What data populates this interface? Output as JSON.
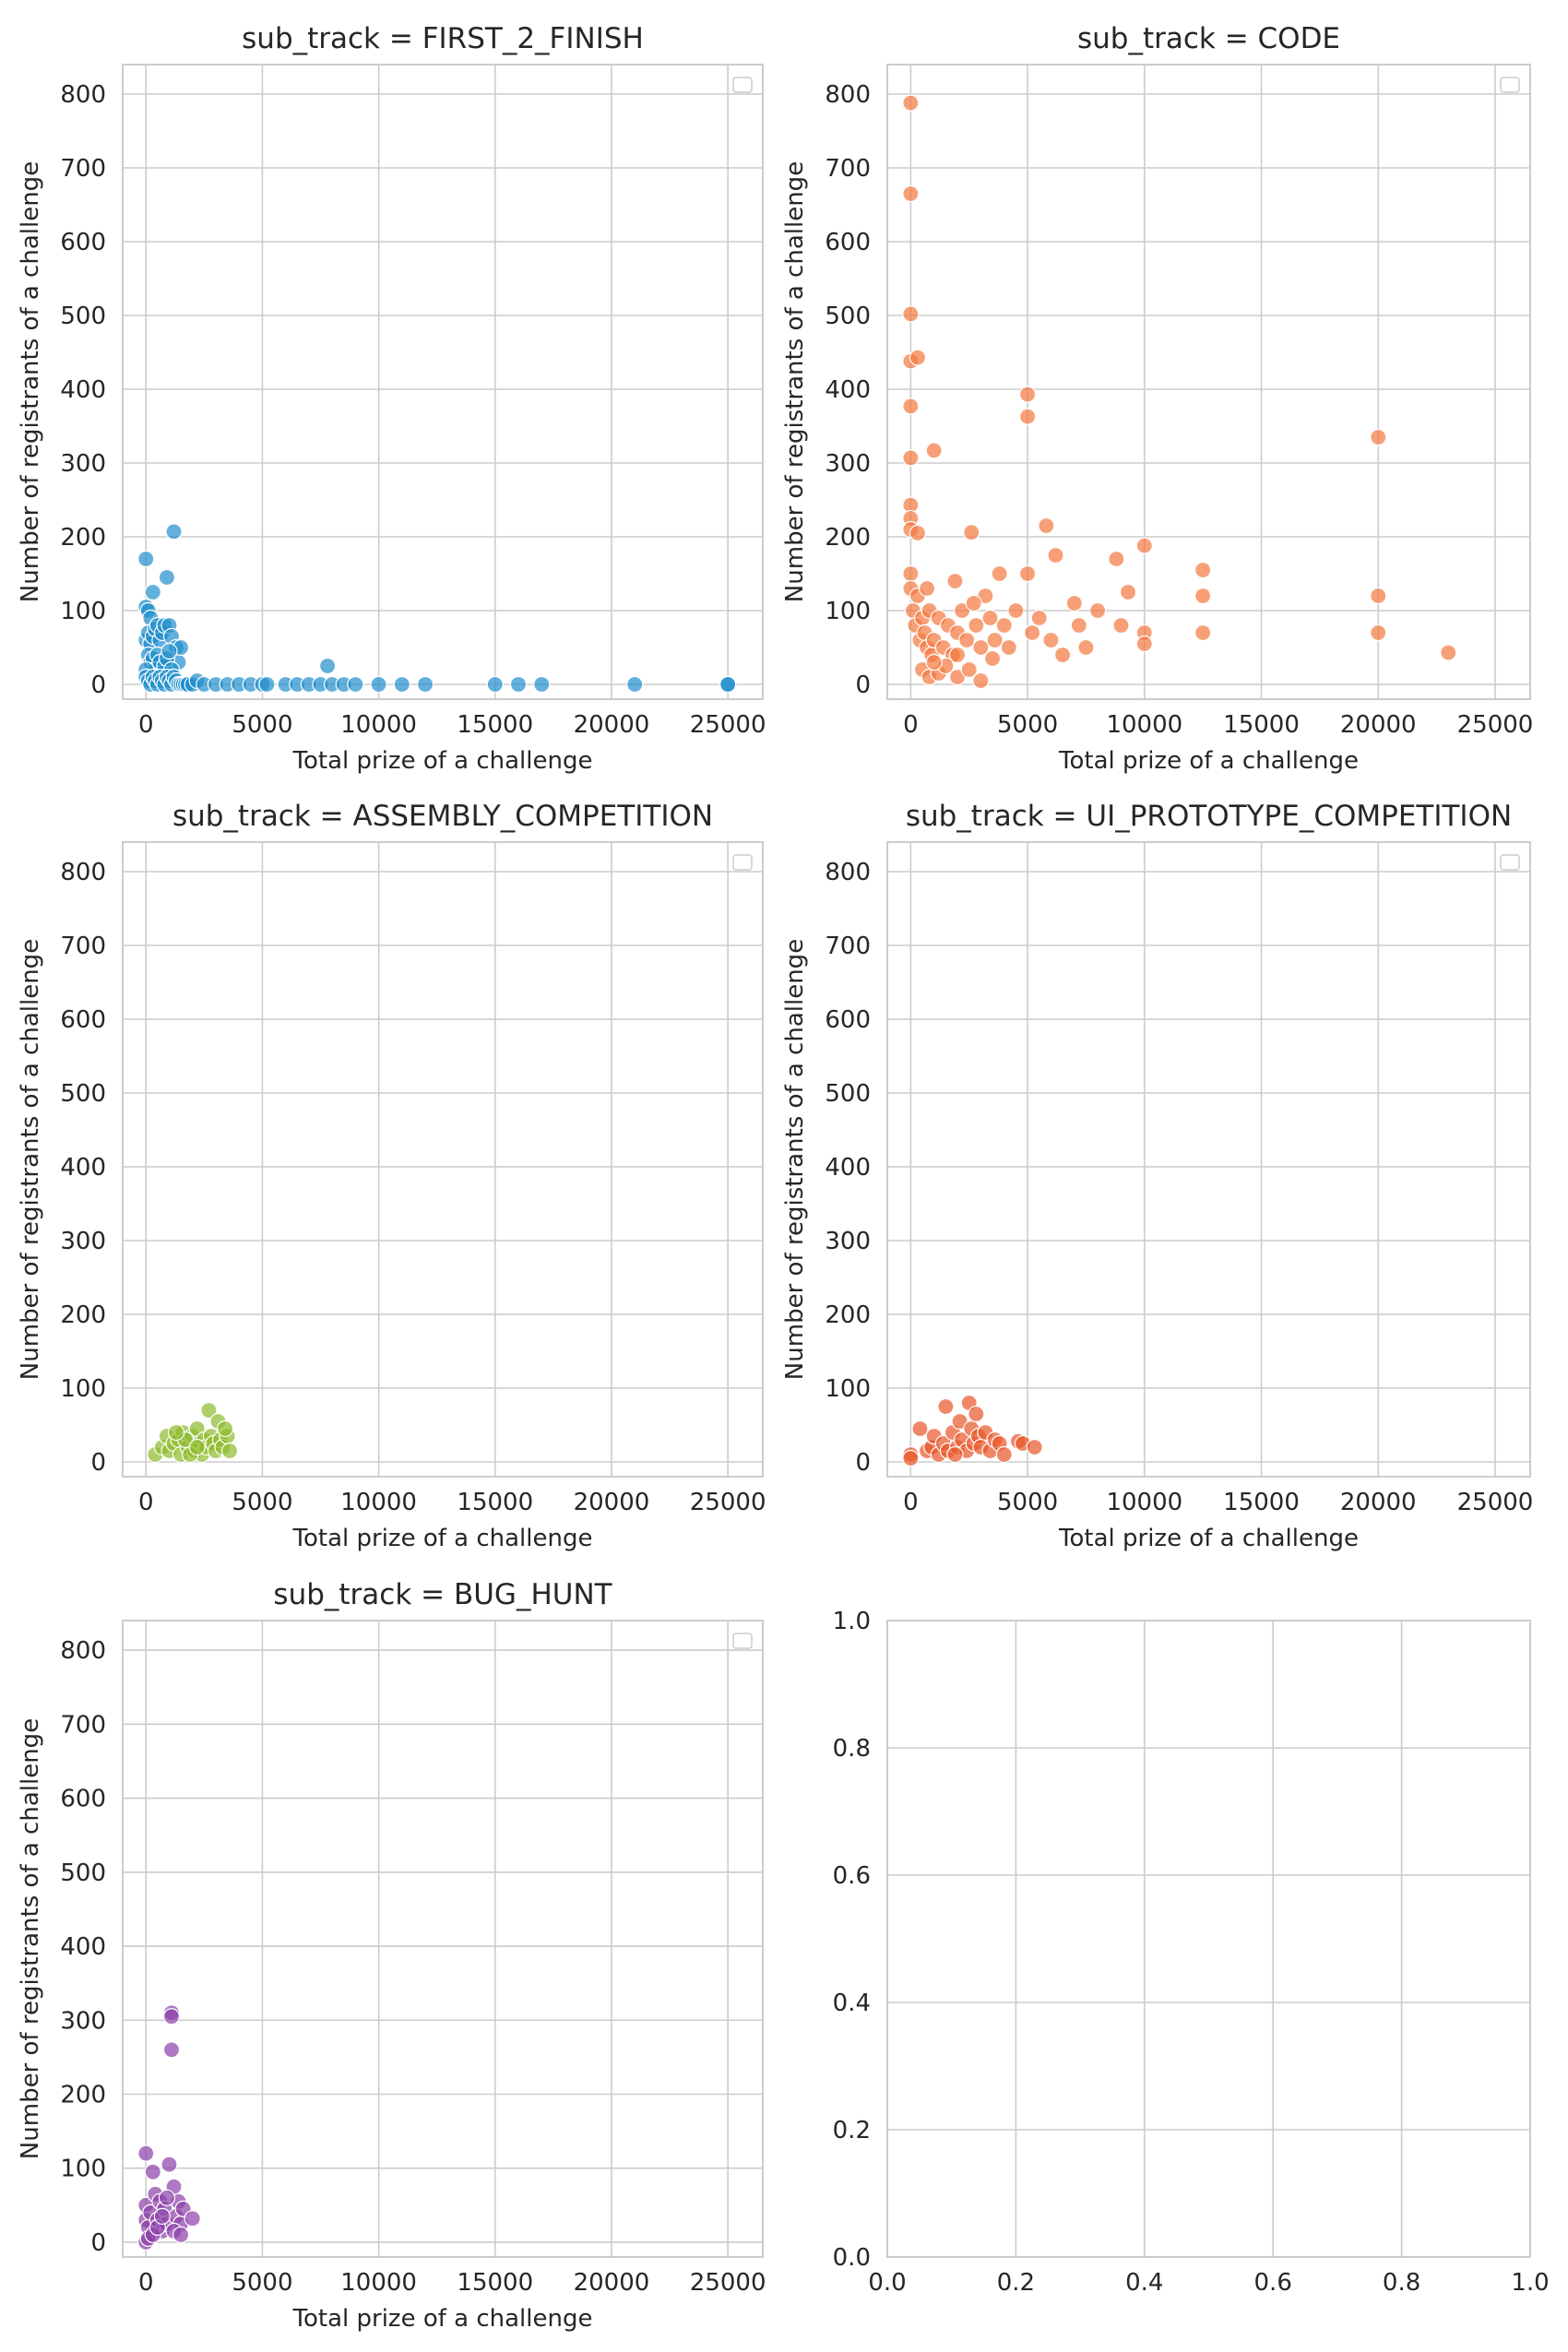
{
  "chart_data": [
    {
      "type": "scatter",
      "title": "sub_track = FIRST_2_FINISH",
      "xlabel": "Total prize of a challenge",
      "ylabel": "Number of registrants of a challenge",
      "xlim": [
        -1000,
        26500
      ],
      "ylim": [
        -20,
        840
      ],
      "xticks": [
        0,
        5000,
        10000,
        15000,
        20000,
        25000
      ],
      "yticks": [
        0,
        100,
        200,
        300,
        400,
        500,
        600,
        700,
        800
      ],
      "grid": true,
      "legend": "top-right (empty)",
      "color": "#1f8fcc",
      "points": [
        [
          0,
          170
        ],
        [
          0,
          105
        ],
        [
          100,
          100
        ],
        [
          200,
          90
        ],
        [
          300,
          125
        ],
        [
          0,
          60
        ],
        [
          100,
          70
        ],
        [
          200,
          55
        ],
        [
          300,
          65
        ],
        [
          400,
          75
        ],
        [
          500,
          80
        ],
        [
          600,
          60
        ],
        [
          700,
          70
        ],
        [
          800,
          80
        ],
        [
          900,
          145
        ],
        [
          1000,
          80
        ],
        [
          1100,
          65
        ],
        [
          1200,
          207
        ],
        [
          1300,
          50
        ],
        [
          1400,
          30
        ],
        [
          1500,
          50
        ],
        [
          100,
          40
        ],
        [
          200,
          30
        ],
        [
          300,
          35
        ],
        [
          400,
          20
        ],
        [
          500,
          40
        ],
        [
          600,
          30
        ],
        [
          700,
          15
        ],
        [
          800,
          25
        ],
        [
          900,
          35
        ],
        [
          1000,
          45
        ],
        [
          1100,
          20
        ],
        [
          0,
          20
        ],
        [
          0,
          10
        ],
        [
          100,
          5
        ],
        [
          200,
          0
        ],
        [
          300,
          10
        ],
        [
          400,
          5
        ],
        [
          500,
          0
        ],
        [
          600,
          10
        ],
        [
          700,
          5
        ],
        [
          800,
          0
        ],
        [
          900,
          10
        ],
        [
          1000,
          5
        ],
        [
          1100,
          0
        ],
        [
          1200,
          10
        ],
        [
          1300,
          5
        ],
        [
          1400,
          0
        ],
        [
          1500,
          0
        ],
        [
          1600,
          0
        ],
        [
          1700,
          0
        ],
        [
          1800,
          0
        ],
        [
          2000,
          0
        ],
        [
          2200,
          5
        ],
        [
          2500,
          0
        ],
        [
          3000,
          0
        ],
        [
          3500,
          0
        ],
        [
          4000,
          0
        ],
        [
          4500,
          0
        ],
        [
          5000,
          0
        ],
        [
          5200,
          0
        ],
        [
          6000,
          0
        ],
        [
          6500,
          0
        ],
        [
          7000,
          0
        ],
        [
          7500,
          0
        ],
        [
          7800,
          25
        ],
        [
          8000,
          0
        ],
        [
          8500,
          0
        ],
        [
          9000,
          0
        ],
        [
          10000,
          0
        ],
        [
          11000,
          0
        ],
        [
          12000,
          0
        ],
        [
          15000,
          0
        ],
        [
          16000,
          0
        ],
        [
          17000,
          0
        ],
        [
          21000,
          0
        ],
        [
          25000,
          0
        ],
        [
          25000,
          0
        ]
      ]
    },
    {
      "type": "scatter",
      "title": "sub_track = CODE",
      "xlabel": "Total prize of a challenge",
      "ylabel": "Number of registrants of a challenge",
      "xlim": [
        -1000,
        26500
      ],
      "ylim": [
        -20,
        840
      ],
      "xticks": [
        0,
        5000,
        10000,
        15000,
        20000,
        25000
      ],
      "yticks": [
        0,
        100,
        200,
        300,
        400,
        500,
        600,
        700,
        800
      ],
      "grid": true,
      "legend": "top-right (empty)",
      "color": "#f4783f",
      "points": [
        [
          0,
          788
        ],
        [
          0,
          665
        ],
        [
          0,
          502
        ],
        [
          0,
          438
        ],
        [
          300,
          443
        ],
        [
          0,
          377
        ],
        [
          1000,
          317
        ],
        [
          0,
          307
        ],
        [
          0,
          243
        ],
        [
          0,
          225
        ],
        [
          0,
          210
        ],
        [
          300,
          205
        ],
        [
          0,
          150
        ],
        [
          0,
          130
        ],
        [
          100,
          100
        ],
        [
          200,
          80
        ],
        [
          300,
          120
        ],
        [
          400,
          60
        ],
        [
          500,
          90
        ],
        [
          600,
          70
        ],
        [
          700,
          50
        ],
        [
          800,
          100
        ],
        [
          900,
          40
        ],
        [
          1000,
          60
        ],
        [
          1200,
          90
        ],
        [
          1400,
          50
        ],
        [
          1600,
          80
        ],
        [
          1800,
          40
        ],
        [
          2000,
          70
        ],
        [
          2200,
          100
        ],
        [
          2400,
          60
        ],
        [
          2600,
          206
        ],
        [
          2800,
          80
        ],
        [
          3000,
          50
        ],
        [
          3200,
          120
        ],
        [
          3400,
          90
        ],
        [
          3600,
          60
        ],
        [
          3800,
          150
        ],
        [
          4000,
          80
        ],
        [
          4200,
          50
        ],
        [
          4500,
          100
        ],
        [
          5000,
          393
        ],
        [
          5000,
          363
        ],
        [
          5000,
          150
        ],
        [
          5200,
          70
        ],
        [
          5500,
          90
        ],
        [
          5800,
          215
        ],
        [
          6000,
          60
        ],
        [
          6200,
          175
        ],
        [
          6500,
          40
        ],
        [
          7000,
          110
        ],
        [
          7200,
          80
        ],
        [
          7500,
          50
        ],
        [
          8000,
          100
        ],
        [
          8800,
          170
        ],
        [
          9000,
          80
        ],
        [
          9300,
          125
        ],
        [
          10000,
          188
        ],
        [
          10000,
          70
        ],
        [
          10000,
          55
        ],
        [
          12500,
          155
        ],
        [
          12500,
          120
        ],
        [
          12500,
          70
        ],
        [
          20000,
          335
        ],
        [
          20000,
          120
        ],
        [
          20000,
          70
        ],
        [
          23000,
          43
        ],
        [
          500,
          20
        ],
        [
          800,
          10
        ],
        [
          1200,
          15
        ],
        [
          1500,
          25
        ],
        [
          2000,
          10
        ],
        [
          2500,
          20
        ],
        [
          3000,
          5
        ],
        [
          1000,
          30
        ],
        [
          2000,
          40
        ],
        [
          3500,
          35
        ],
        [
          700,
          130
        ],
        [
          1900,
          140
        ],
        [
          2700,
          110
        ]
      ]
    },
    {
      "type": "scatter",
      "title": "sub_track = ASSEMBLY_COMPETITION",
      "xlabel": "Total prize of a challenge",
      "ylabel": "Number of registrants of a challenge",
      "xlim": [
        -1000,
        26500
      ],
      "ylim": [
        -20,
        840
      ],
      "xticks": [
        0,
        5000,
        10000,
        15000,
        20000,
        25000
      ],
      "yticks": [
        0,
        100,
        200,
        300,
        400,
        500,
        600,
        700,
        800
      ],
      "grid": true,
      "legend": "top-right (empty)",
      "color": "#8cbb2a",
      "points": [
        [
          400,
          10
        ],
        [
          700,
          20
        ],
        [
          900,
          35
        ],
        [
          1000,
          15
        ],
        [
          1200,
          25
        ],
        [
          1400,
          30
        ],
        [
          1500,
          10
        ],
        [
          1600,
          40
        ],
        [
          1800,
          20
        ],
        [
          2000,
          35
        ],
        [
          2100,
          15
        ],
        [
          2200,
          45
        ],
        [
          2300,
          25
        ],
        [
          2400,
          10
        ],
        [
          2500,
          30
        ],
        [
          2600,
          20
        ],
        [
          2700,
          70
        ],
        [
          2800,
          35
        ],
        [
          2900,
          25
        ],
        [
          3000,
          15
        ],
        [
          3100,
          55
        ],
        [
          3200,
          30
        ],
        [
          3300,
          20
        ],
        [
          3500,
          35
        ],
        [
          3600,
          15
        ],
        [
          1700,
          30
        ],
        [
          1900,
          10
        ],
        [
          2200,
          20
        ],
        [
          3400,
          45
        ],
        [
          1300,
          40
        ]
      ]
    },
    {
      "type": "scatter",
      "title": "sub_track = UI_PROTOTYPE_COMPETITION",
      "xlabel": "Total prize of a challenge",
      "ylabel": "Number of registrants of a challenge",
      "xlim": [
        -1000,
        26500
      ],
      "ylim": [
        -20,
        840
      ],
      "xticks": [
        0,
        5000,
        10000,
        15000,
        20000,
        25000
      ],
      "yticks": [
        0,
        100,
        200,
        300,
        400,
        500,
        600,
        700,
        800
      ],
      "grid": true,
      "legend": "top-right (empty)",
      "color": "#e8562a",
      "points": [
        [
          0,
          10
        ],
        [
          0,
          5
        ],
        [
          400,
          45
        ],
        [
          700,
          15
        ],
        [
          900,
          20
        ],
        [
          1000,
          35
        ],
        [
          1200,
          10
        ],
        [
          1400,
          25
        ],
        [
          1500,
          75
        ],
        [
          1600,
          15
        ],
        [
          1800,
          40
        ],
        [
          2000,
          20
        ],
        [
          2100,
          55
        ],
        [
          2200,
          30
        ],
        [
          2400,
          15
        ],
        [
          2500,
          80
        ],
        [
          2600,
          45
        ],
        [
          2700,
          25
        ],
        [
          2800,
          65
        ],
        [
          2900,
          35
        ],
        [
          3000,
          20
        ],
        [
          3200,
          40
        ],
        [
          3400,
          15
        ],
        [
          3600,
          30
        ],
        [
          3800,
          25
        ],
        [
          4000,
          10
        ],
        [
          4600,
          28
        ],
        [
          4800,
          25
        ],
        [
          5300,
          20
        ],
        [
          1900,
          10
        ]
      ]
    },
    {
      "type": "scatter",
      "title": "sub_track = BUG_HUNT",
      "xlabel": "Total prize of a challenge",
      "ylabel": "Number of registrants of a challenge",
      "xlim": [
        -1000,
        26500
      ],
      "ylim": [
        -20,
        840
      ],
      "xticks": [
        0,
        5000,
        10000,
        15000,
        20000,
        25000
      ],
      "yticks": [
        0,
        100,
        200,
        300,
        400,
        500,
        600,
        700,
        800
      ],
      "grid": true,
      "legend": "top-right (empty)",
      "color": "#8b3fa8",
      "points": [
        [
          0,
          120
        ],
        [
          0,
          50
        ],
        [
          0,
          30
        ],
        [
          0,
          0
        ],
        [
          100,
          20
        ],
        [
          200,
          40
        ],
        [
          300,
          95
        ],
        [
          400,
          65
        ],
        [
          500,
          30
        ],
        [
          600,
          55
        ],
        [
          700,
          15
        ],
        [
          800,
          45
        ],
        [
          900,
          25
        ],
        [
          1000,
          105
        ],
        [
          1100,
          310
        ],
        [
          1100,
          305
        ],
        [
          1100,
          260
        ],
        [
          1200,
          75
        ],
        [
          1300,
          35
        ],
        [
          1400,
          55
        ],
        [
          1500,
          25
        ],
        [
          1600,
          45
        ],
        [
          2000,
          32
        ],
        [
          100,
          5
        ],
        [
          300,
          10
        ],
        [
          500,
          20
        ],
        [
          700,
          35
        ],
        [
          1200,
          15
        ],
        [
          1500,
          10
        ],
        [
          900,
          60
        ]
      ]
    },
    {
      "type": "scatter",
      "title": "",
      "xlim": [
        0,
        1
      ],
      "ylim": [
        0,
        1
      ],
      "xticks": [
        0.0,
        0.2,
        0.4,
        0.6,
        0.8,
        1.0
      ],
      "yticks": [
        0.0,
        0.2,
        0.4,
        0.6,
        0.8,
        1.0
      ],
      "tick_labels": [
        "0.0",
        "0.2",
        "0.4",
        "0.6",
        "0.8",
        "1.0"
      ],
      "grid": true,
      "points": []
    }
  ]
}
